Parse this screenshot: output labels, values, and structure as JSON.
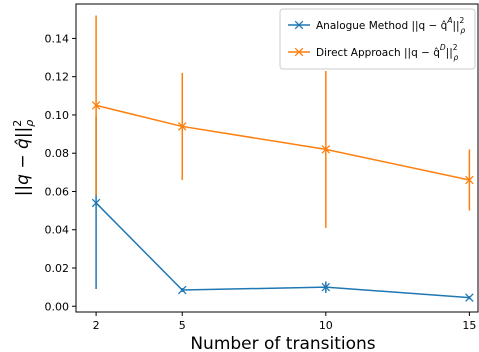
{
  "chart_data": {
    "type": "line",
    "title": "",
    "xlabel": "Number of transitions",
    "ylabel": "||q − q̂||²ρ",
    "x": [
      2,
      5,
      10,
      15
    ],
    "xticks": [
      "2",
      "5",
      "10",
      "15"
    ],
    "xlim": [
      1.3,
      15.3
    ],
    "ylim": [
      -0.003,
      0.158
    ],
    "yticks": [
      "0.00",
      "0.02",
      "0.04",
      "0.06",
      "0.08",
      "0.10",
      "0.12",
      "0.14"
    ],
    "ytick_values": [
      0.0,
      0.02,
      0.04,
      0.06,
      0.08,
      0.1,
      0.12,
      0.14
    ],
    "grid": false,
    "legend_position": "top-right",
    "series": [
      {
        "name": "Analogue Method ||q − q̂ᴬ||²ρ",
        "legend_main": "Analogue Method ||q − q̂",
        "legend_sup": "A",
        "legend_end": "||",
        "legend_sup2": "2",
        "legend_sub": "ρ",
        "color": "#1f77b4",
        "values": [
          0.054,
          0.0085,
          0.01,
          0.0045
        ],
        "errors": [
          0.045,
          0.001,
          0.003,
          0.0008
        ]
      },
      {
        "name": "Direct Approach ||q − q̂ᴰ||²ρ",
        "legend_main": "Direct Approach ||q − q̂",
        "legend_sup": "D",
        "legend_end": "||",
        "legend_sup2": "2",
        "legend_sub": "ρ",
        "color": "#ff7f0e",
        "values": [
          0.105,
          0.094,
          0.082,
          0.066
        ],
        "errors": [
          0.047,
          0.028,
          0.041,
          0.016
        ]
      }
    ]
  }
}
